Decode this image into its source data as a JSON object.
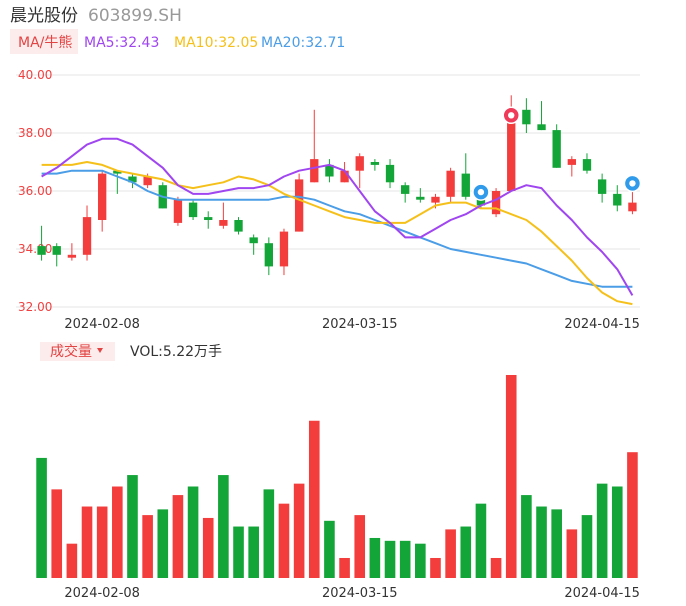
{
  "header": {
    "name": "晨光股份",
    "code": "603899.SH"
  },
  "ma_legend": {
    "label": "MA/牛熊",
    "ma5": "MA5:32.43",
    "ma10": "MA10:32.05",
    "ma20": "MA20:32.71"
  },
  "volume_legend": {
    "label": "成交量",
    "value": "VOL:5.22万手"
  },
  "colors": {
    "up": "#f33d3d",
    "down": "#13a538",
    "ma5": "#a046f0",
    "ma10": "#f5c019",
    "ma20": "#4a9de6",
    "grid": "#e6e6e6",
    "axis_text": "#f04040"
  },
  "icons": {
    "bear": "bear-icon",
    "bull": "bull-icon"
  },
  "chart_data": [
    {
      "type": "candlestick",
      "ylim": [
        32.0,
        40.0
      ],
      "yticks": [
        "40.00",
        "38.00",
        "36.00",
        "34.00",
        "32.00"
      ],
      "xticks": [
        "2024-02-08",
        "2024-03-15",
        "2024-04-15"
      ],
      "candles": [
        {
          "open": 34.1,
          "close": 33.8,
          "high": 34.8,
          "low": 33.6
        },
        {
          "open": 34.1,
          "close": 33.8,
          "high": 34.2,
          "low": 33.4
        },
        {
          "open": 33.7,
          "close": 33.8,
          "high": 34.2,
          "low": 33.6
        },
        {
          "open": 33.8,
          "close": 35.1,
          "high": 35.5,
          "low": 33.6
        },
        {
          "open": 35.0,
          "close": 36.6,
          "high": 36.7,
          "low": 34.6
        },
        {
          "open": 36.7,
          "close": 36.6,
          "high": 36.7,
          "low": 35.9
        },
        {
          "open": 36.5,
          "close": 36.3,
          "high": 36.6,
          "low": 36.1
        },
        {
          "open": 36.2,
          "close": 36.5,
          "high": 36.6,
          "low": 36.1
        },
        {
          "open": 36.2,
          "close": 35.4,
          "high": 36.3,
          "low": 35.4
        },
        {
          "open": 34.9,
          "close": 35.7,
          "high": 35.8,
          "low": 34.8
        },
        {
          "open": 35.6,
          "close": 35.1,
          "high": 35.7,
          "low": 35.0
        },
        {
          "open": 35.1,
          "close": 35.0,
          "high": 35.3,
          "low": 34.7
        },
        {
          "open": 34.8,
          "close": 35.0,
          "high": 35.6,
          "low": 34.7
        },
        {
          "open": 35.0,
          "close": 34.6,
          "high": 35.1,
          "low": 34.5
        },
        {
          "open": 34.4,
          "close": 34.2,
          "high": 34.5,
          "low": 33.8
        },
        {
          "open": 34.2,
          "close": 33.4,
          "high": 34.4,
          "low": 33.1
        },
        {
          "open": 33.4,
          "close": 34.6,
          "high": 34.7,
          "low": 33.1
        },
        {
          "open": 34.6,
          "close": 36.4,
          "high": 36.6,
          "low": 34.6
        },
        {
          "open": 36.3,
          "close": 37.1,
          "high": 38.8,
          "low": 36.3
        },
        {
          "open": 36.9,
          "close": 36.5,
          "high": 37.1,
          "low": 36.3
        },
        {
          "open": 36.3,
          "close": 36.7,
          "high": 37.0,
          "low": 36.3
        },
        {
          "open": 36.7,
          "close": 37.2,
          "high": 37.3,
          "low": 36.1
        },
        {
          "open": 37.0,
          "close": 36.9,
          "high": 37.1,
          "low": 36.7
        },
        {
          "open": 36.9,
          "close": 36.3,
          "high": 37.1,
          "low": 36.1
        },
        {
          "open": 36.2,
          "close": 35.9,
          "high": 36.3,
          "low": 35.6
        },
        {
          "open": 35.8,
          "close": 35.7,
          "high": 36.1,
          "low": 35.6
        },
        {
          "open": 35.6,
          "close": 35.8,
          "high": 35.9,
          "low": 35.4
        },
        {
          "open": 35.8,
          "close": 36.7,
          "high": 36.8,
          "low": 35.6
        },
        {
          "open": 36.6,
          "close": 35.8,
          "high": 37.3,
          "low": 35.7
        },
        {
          "open": 35.9,
          "close": 35.5,
          "high": 36.1,
          "low": 35.4
        },
        {
          "open": 35.2,
          "close": 36.0,
          "high": 36.1,
          "low": 35.1
        },
        {
          "open": 36.0,
          "close": 38.8,
          "high": 39.3,
          "low": 36.0
        },
        {
          "open": 38.8,
          "close": 38.3,
          "high": 39.2,
          "low": 38.0
        },
        {
          "open": 38.3,
          "close": 38.1,
          "high": 39.1,
          "low": 38.1
        },
        {
          "open": 38.1,
          "close": 36.8,
          "high": 38.3,
          "low": 36.8
        },
        {
          "open": 36.9,
          "close": 37.1,
          "high": 37.2,
          "low": 36.5
        },
        {
          "open": 37.1,
          "close": 36.7,
          "high": 37.3,
          "low": 36.6
        },
        {
          "open": 36.4,
          "close": 35.9,
          "high": 36.6,
          "low": 35.6
        },
        {
          "open": 35.9,
          "close": 35.5,
          "high": 36.2,
          "low": 35.3
        },
        {
          "open": 35.3,
          "close": 35.6,
          "high": 36.4,
          "low": 35.2
        }
      ],
      "ma5": [
        36.5,
        36.8,
        37.2,
        37.6,
        37.8,
        37.8,
        37.6,
        37.2,
        36.8,
        36.2,
        35.9,
        35.9,
        36.0,
        36.1,
        36.1,
        36.2,
        36.5,
        36.7,
        36.8,
        36.9,
        36.7,
        36.0,
        35.3,
        34.9,
        34.4,
        34.4,
        34.7,
        35.0,
        35.2,
        35.5,
        35.7,
        36.0,
        36.2,
        36.1,
        35.5,
        35.0,
        34.4,
        33.9,
        33.3,
        32.4
      ],
      "ma10": [
        36.9,
        36.9,
        36.9,
        37.0,
        36.9,
        36.7,
        36.6,
        36.5,
        36.4,
        36.2,
        36.1,
        36.2,
        36.3,
        36.5,
        36.4,
        36.2,
        35.9,
        35.7,
        35.5,
        35.3,
        35.1,
        35.0,
        34.9,
        34.9,
        34.9,
        35.2,
        35.5,
        35.6,
        35.6,
        35.4,
        35.4,
        35.2,
        35.0,
        34.6,
        34.1,
        33.6,
        33.0,
        32.5,
        32.2,
        32.1
      ],
      "ma20": [
        36.6,
        36.6,
        36.7,
        36.7,
        36.7,
        36.5,
        36.3,
        36.0,
        35.8,
        35.7,
        35.7,
        35.7,
        35.7,
        35.7,
        35.7,
        35.7,
        35.8,
        35.8,
        35.7,
        35.5,
        35.3,
        35.2,
        35.0,
        34.8,
        34.6,
        34.4,
        34.2,
        34.0,
        33.9,
        33.8,
        33.7,
        33.6,
        33.5,
        33.3,
        33.1,
        32.9,
        32.8,
        32.7,
        32.7,
        32.7
      ]
    },
    {
      "type": "bar",
      "series": [
        {
          "values": [
            4.2,
            3.1,
            1.2,
            2.5,
            2.5,
            3.2,
            3.6,
            2.2,
            2.4,
            2.9,
            3.2,
            2.1,
            3.6,
            1.8,
            1.8,
            3.1,
            2.6,
            3.3,
            5.5,
            2.0,
            0.7,
            2.2,
            1.4,
            1.3,
            1.3,
            1.2,
            0.7,
            1.7,
            1.8,
            2.6,
            0.7,
            7.1,
            2.9,
            2.5,
            2.4,
            1.7,
            2.2,
            3.3,
            3.2,
            4.4
          ],
          "direction": [
            "down",
            "up",
            "up",
            "up",
            "up",
            "up",
            "down",
            "up",
            "down",
            "up",
            "down",
            "up",
            "down",
            "down",
            "down",
            "down",
            "up",
            "up",
            "up",
            "down",
            "up",
            "up",
            "down",
            "down",
            "down",
            "down",
            "up",
            "up",
            "down",
            "down",
            "up",
            "up",
            "down",
            "down",
            "down",
            "up",
            "down",
            "down",
            "down",
            "up"
          ]
        }
      ],
      "xticks": [
        "2024-02-08",
        "2024-03-15",
        "2024-04-15"
      ]
    }
  ]
}
